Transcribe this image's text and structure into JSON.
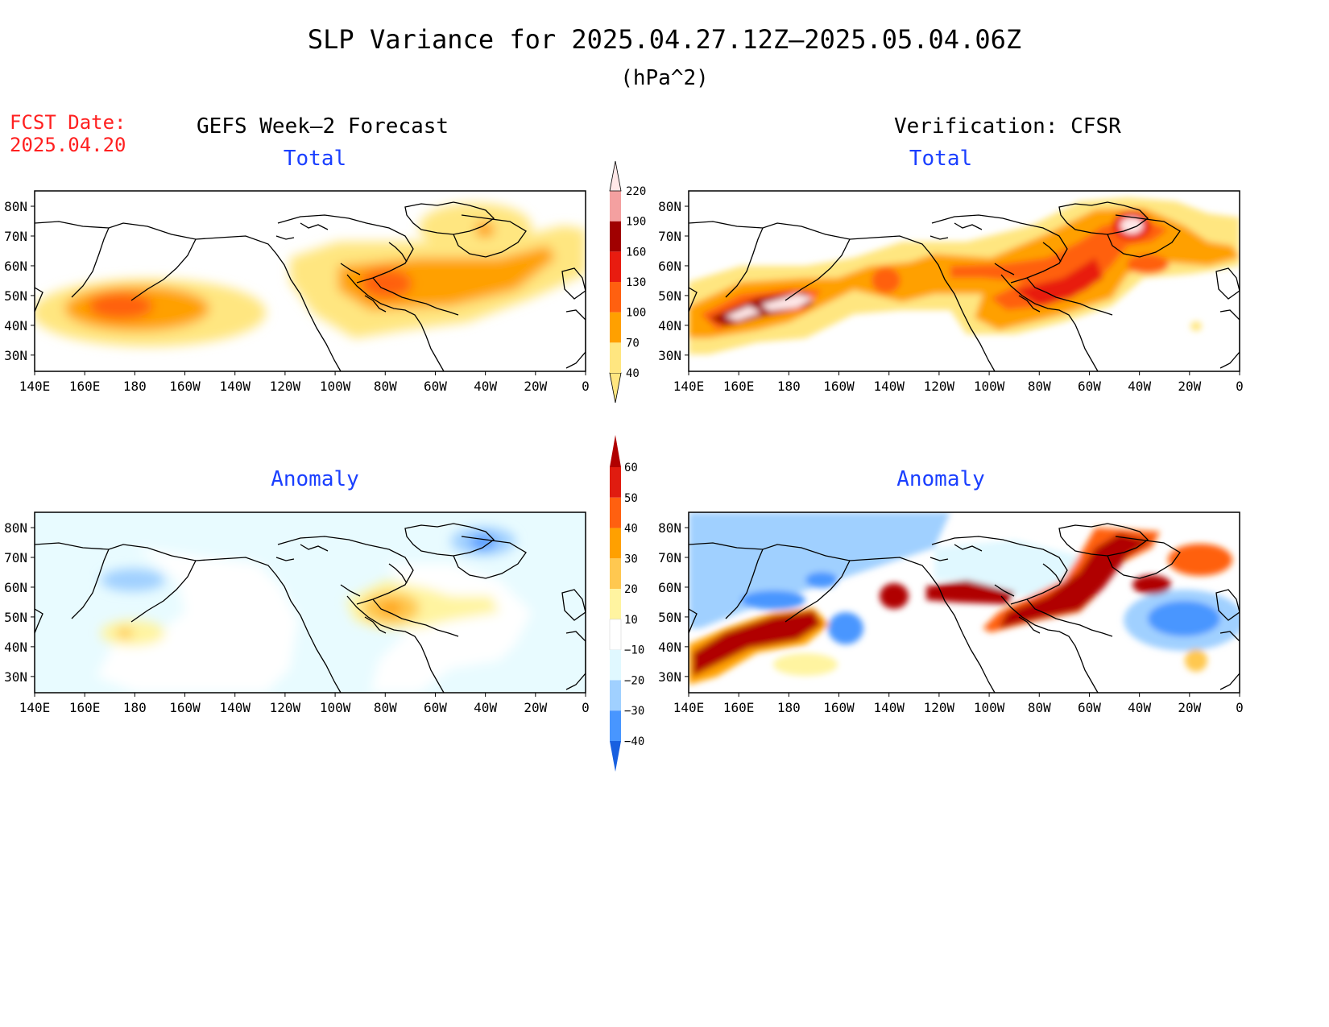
{
  "title": "SLP Variance for 2025.04.27.12Z–2025.05.04.06Z",
  "units": "(hPa^2)",
  "forecast_date": {
    "label": "FCST Date:",
    "value": "2025.04.20"
  },
  "columns": {
    "left": "GEFS Week–2 Forecast",
    "right": "Verification: CFSR"
  },
  "panels": [
    {
      "id": "gefs-total",
      "subtitle": "Total"
    },
    {
      "id": "cfsr-total",
      "subtitle": "Total"
    },
    {
      "id": "gefs-anomaly",
      "subtitle": "Anomaly"
    },
    {
      "id": "cfsr-anomaly",
      "subtitle": "Anomaly"
    }
  ],
  "axes": {
    "lon_labels": [
      "140E",
      "160E",
      "180",
      "160W",
      "140W",
      "120W",
      "100W",
      "80W",
      "60W",
      "40W",
      "20W",
      "0"
    ],
    "lat_labels": [
      "80N",
      "70N",
      "60N",
      "50N",
      "40N",
      "30N"
    ]
  },
  "colorbars": {
    "total": {
      "levels": [
        "40",
        "70",
        "100",
        "130",
        "160",
        "190",
        "220"
      ],
      "colors": [
        "#ffe680",
        "#ffa000",
        "#ff6010",
        "#e81c10",
        "#a00000",
        "#f4a0a0",
        "#ffe8e8"
      ]
    },
    "anomaly": {
      "labels": [
        "60",
        "50",
        "40",
        "30",
        "20",
        "10",
        "−10",
        "−20",
        "−30",
        "−40"
      ],
      "colors": [
        "#b00000",
        "#e01c10",
        "#ff6010",
        "#ffa000",
        "#ffc850",
        "#fff4a0",
        "#ffffff",
        "#e0f8ff",
        "#a0d0ff",
        "#4896ff",
        "#1860e0"
      ]
    }
  }
}
